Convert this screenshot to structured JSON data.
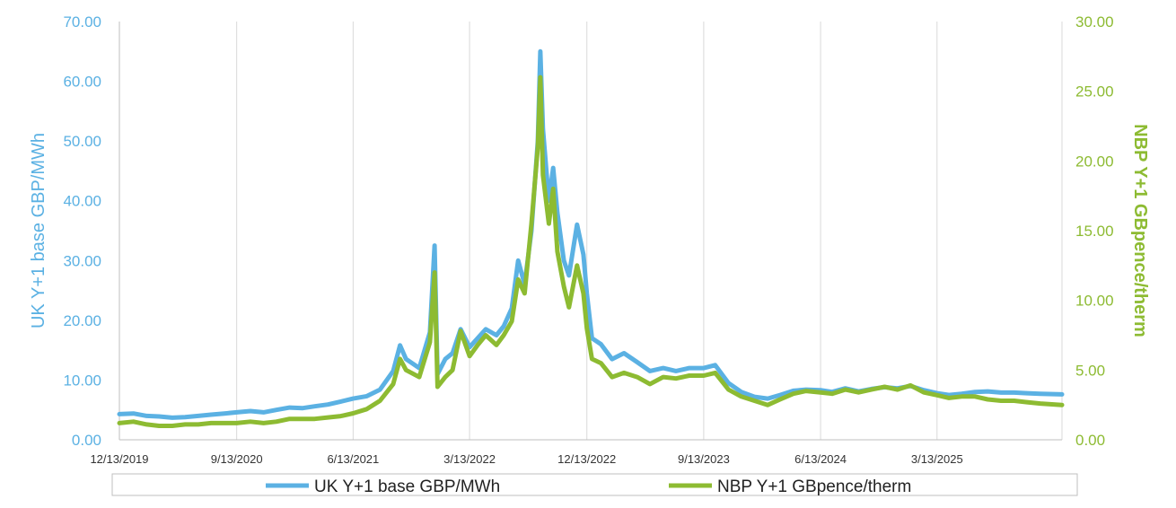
{
  "chart_data": {
    "type": "line",
    "title": "",
    "xlabel": "",
    "y_left": {
      "label": "UK Y+1 base GBP/MWh",
      "range": [
        0,
        70
      ],
      "ticks": [
        "0.00",
        "10.00",
        "20.00",
        "30.00",
        "40.00",
        "50.00",
        "60.00",
        "70.00"
      ],
      "color": "#5bb1e3"
    },
    "y_right": {
      "label": "NBP Y+1 GBpence/therm",
      "range": [
        0,
        30
      ],
      "ticks": [
        "0.00",
        "5.00",
        "10.00",
        "15.00",
        "20.00",
        "25.00",
        "30.00"
      ],
      "color": "#8dbb32"
    },
    "x_range": [
      "2019-12-13",
      "2025-12-31"
    ],
    "x_ticks": [
      "12/13/2019",
      "9/13/2020",
      "6/13/2021",
      "3/13/2022",
      "12/13/2022",
      "9/13/2023",
      "6/13/2024",
      "3/13/2025"
    ],
    "grid": "vertical",
    "legend_position": "bottom",
    "series": [
      {
        "name": "UK Y+1 base GBP/MWh",
        "axis": "left",
        "color": "#5bb1e3",
        "points": [
          [
            "2019-12-13",
            4.3
          ],
          [
            "2020-01-15",
            4.4
          ],
          [
            "2020-02-15",
            4.0
          ],
          [
            "2020-03-15",
            3.9
          ],
          [
            "2020-04-15",
            3.7
          ],
          [
            "2020-05-15",
            3.8
          ],
          [
            "2020-06-15",
            4.0
          ],
          [
            "2020-07-15",
            4.2
          ],
          [
            "2020-08-15",
            4.4
          ],
          [
            "2020-09-13",
            4.6
          ],
          [
            "2020-10-15",
            4.8
          ],
          [
            "2020-11-15",
            4.6
          ],
          [
            "2020-12-15",
            5.0
          ],
          [
            "2021-01-15",
            5.4
          ],
          [
            "2021-02-15",
            5.3
          ],
          [
            "2021-03-15",
            5.6
          ],
          [
            "2021-04-15",
            5.9
          ],
          [
            "2021-05-15",
            6.4
          ],
          [
            "2021-06-13",
            6.9
          ],
          [
            "2021-07-15",
            7.3
          ],
          [
            "2021-08-15",
            8.4
          ],
          [
            "2021-09-15",
            11.5
          ],
          [
            "2021-10-01",
            15.8
          ],
          [
            "2021-10-15",
            13.5
          ],
          [
            "2021-11-15",
            12.0
          ],
          [
            "2021-12-10",
            18.0
          ],
          [
            "2021-12-21",
            32.5
          ],
          [
            "2021-12-28",
            11.0
          ],
          [
            "2022-01-15",
            13.5
          ],
          [
            "2022-02-01",
            14.5
          ],
          [
            "2022-02-20",
            18.5
          ],
          [
            "2022-03-13",
            15.5
          ],
          [
            "2022-04-01",
            17.0
          ],
          [
            "2022-04-20",
            18.5
          ],
          [
            "2022-05-15",
            17.5
          ],
          [
            "2022-06-01",
            19.0
          ],
          [
            "2022-06-20",
            22.0
          ],
          [
            "2022-07-05",
            30.0
          ],
          [
            "2022-07-20",
            26.0
          ],
          [
            "2022-08-05",
            35.0
          ],
          [
            "2022-08-20",
            50.0
          ],
          [
            "2022-08-26",
            65.0
          ],
          [
            "2022-09-01",
            52.0
          ],
          [
            "2022-09-15",
            40.0
          ],
          [
            "2022-09-25",
            45.5
          ],
          [
            "2022-10-05",
            38.0
          ],
          [
            "2022-10-20",
            30.0
          ],
          [
            "2022-11-01",
            27.5
          ],
          [
            "2022-11-20",
            36.0
          ],
          [
            "2022-12-05",
            31.0
          ],
          [
            "2022-12-13",
            24.5
          ],
          [
            "2022-12-25",
            17.0
          ],
          [
            "2023-01-15",
            16.0
          ],
          [
            "2023-02-10",
            13.5
          ],
          [
            "2023-03-10",
            14.5
          ],
          [
            "2023-04-10",
            13.0
          ],
          [
            "2023-05-10",
            11.5
          ],
          [
            "2023-06-10",
            12.0
          ],
          [
            "2023-07-10",
            11.5
          ],
          [
            "2023-08-10",
            12.0
          ],
          [
            "2023-09-13",
            12.0
          ],
          [
            "2023-10-10",
            12.5
          ],
          [
            "2023-11-10",
            9.5
          ],
          [
            "2023-12-10",
            8.0
          ],
          [
            "2024-01-10",
            7.2
          ],
          [
            "2024-02-10",
            6.9
          ],
          [
            "2024-03-10",
            7.5
          ],
          [
            "2024-04-10",
            8.2
          ],
          [
            "2024-05-10",
            8.4
          ],
          [
            "2024-06-13",
            8.3
          ],
          [
            "2024-07-10",
            8.0
          ],
          [
            "2024-08-10",
            8.6
          ],
          [
            "2024-09-10",
            8.1
          ],
          [
            "2024-10-10",
            8.5
          ],
          [
            "2024-11-10",
            8.8
          ],
          [
            "2024-12-10",
            8.6
          ],
          [
            "2025-01-10",
            9.0
          ],
          [
            "2025-02-10",
            8.3
          ],
          [
            "2025-03-13",
            7.8
          ],
          [
            "2025-04-10",
            7.5
          ],
          [
            "2025-05-10",
            7.7
          ],
          [
            "2025-06-10",
            8.0
          ],
          [
            "2025-07-10",
            8.1
          ],
          [
            "2025-08-10",
            7.9
          ],
          [
            "2025-09-10",
            7.9
          ],
          [
            "2025-10-10",
            7.8
          ],
          [
            "2025-11-10",
            7.7
          ],
          [
            "2025-12-31",
            7.6
          ]
        ]
      },
      {
        "name": "NBP Y+1 GBpence/therm",
        "axis": "right",
        "color": "#8dbb32",
        "points": [
          [
            "2019-12-13",
            1.2
          ],
          [
            "2020-01-15",
            1.3
          ],
          [
            "2020-02-15",
            1.1
          ],
          [
            "2020-03-15",
            1.0
          ],
          [
            "2020-04-15",
            1.0
          ],
          [
            "2020-05-15",
            1.1
          ],
          [
            "2020-06-15",
            1.1
          ],
          [
            "2020-07-15",
            1.2
          ],
          [
            "2020-08-15",
            1.2
          ],
          [
            "2020-09-13",
            1.2
          ],
          [
            "2020-10-15",
            1.3
          ],
          [
            "2020-11-15",
            1.2
          ],
          [
            "2020-12-15",
            1.3
          ],
          [
            "2021-01-15",
            1.5
          ],
          [
            "2021-02-15",
            1.5
          ],
          [
            "2021-03-15",
            1.5
          ],
          [
            "2021-04-15",
            1.6
          ],
          [
            "2021-05-15",
            1.7
          ],
          [
            "2021-06-13",
            1.9
          ],
          [
            "2021-07-15",
            2.2
          ],
          [
            "2021-08-15",
            2.8
          ],
          [
            "2021-09-15",
            4.0
          ],
          [
            "2021-10-01",
            5.8
          ],
          [
            "2021-10-15",
            5.0
          ],
          [
            "2021-11-15",
            4.5
          ],
          [
            "2021-12-10",
            7.0
          ],
          [
            "2021-12-21",
            12.0
          ],
          [
            "2021-12-28",
            3.8
          ],
          [
            "2022-01-15",
            4.5
          ],
          [
            "2022-02-01",
            5.0
          ],
          [
            "2022-02-20",
            7.8
          ],
          [
            "2022-03-13",
            6.0
          ],
          [
            "2022-04-01",
            6.8
          ],
          [
            "2022-04-20",
            7.5
          ],
          [
            "2022-05-15",
            6.8
          ],
          [
            "2022-06-01",
            7.5
          ],
          [
            "2022-06-20",
            8.5
          ],
          [
            "2022-07-05",
            11.5
          ],
          [
            "2022-07-20",
            10.5
          ],
          [
            "2022-08-05",
            15.5
          ],
          [
            "2022-08-20",
            21.0
          ],
          [
            "2022-08-26",
            26.0
          ],
          [
            "2022-09-01",
            19.0
          ],
          [
            "2022-09-15",
            15.5
          ],
          [
            "2022-09-25",
            18.0
          ],
          [
            "2022-10-05",
            13.5
          ],
          [
            "2022-10-20",
            11.0
          ],
          [
            "2022-11-01",
            9.5
          ],
          [
            "2022-11-20",
            12.5
          ],
          [
            "2022-12-05",
            10.5
          ],
          [
            "2022-12-13",
            8.0
          ],
          [
            "2022-12-25",
            5.8
          ],
          [
            "2023-01-15",
            5.5
          ],
          [
            "2023-02-10",
            4.5
          ],
          [
            "2023-03-10",
            4.8
          ],
          [
            "2023-04-10",
            4.5
          ],
          [
            "2023-05-10",
            4.0
          ],
          [
            "2023-06-10",
            4.5
          ],
          [
            "2023-07-10",
            4.4
          ],
          [
            "2023-08-10",
            4.6
          ],
          [
            "2023-09-13",
            4.6
          ],
          [
            "2023-10-10",
            4.8
          ],
          [
            "2023-11-10",
            3.6
          ],
          [
            "2023-12-10",
            3.1
          ],
          [
            "2024-01-10",
            2.8
          ],
          [
            "2024-02-10",
            2.5
          ],
          [
            "2024-03-10",
            2.9
          ],
          [
            "2024-04-10",
            3.3
          ],
          [
            "2024-05-10",
            3.5
          ],
          [
            "2024-06-13",
            3.4
          ],
          [
            "2024-07-10",
            3.3
          ],
          [
            "2024-08-10",
            3.6
          ],
          [
            "2024-09-10",
            3.4
          ],
          [
            "2024-10-10",
            3.6
          ],
          [
            "2024-11-10",
            3.8
          ],
          [
            "2024-12-10",
            3.6
          ],
          [
            "2025-01-10",
            3.9
          ],
          [
            "2025-02-10",
            3.4
          ],
          [
            "2025-03-13",
            3.2
          ],
          [
            "2025-04-10",
            3.0
          ],
          [
            "2025-05-10",
            3.1
          ],
          [
            "2025-06-10",
            3.1
          ],
          [
            "2025-07-10",
            2.9
          ],
          [
            "2025-08-10",
            2.8
          ],
          [
            "2025-09-10",
            2.8
          ],
          [
            "2025-10-10",
            2.7
          ],
          [
            "2025-11-10",
            2.6
          ],
          [
            "2025-12-31",
            2.5
          ]
        ]
      }
    ]
  }
}
